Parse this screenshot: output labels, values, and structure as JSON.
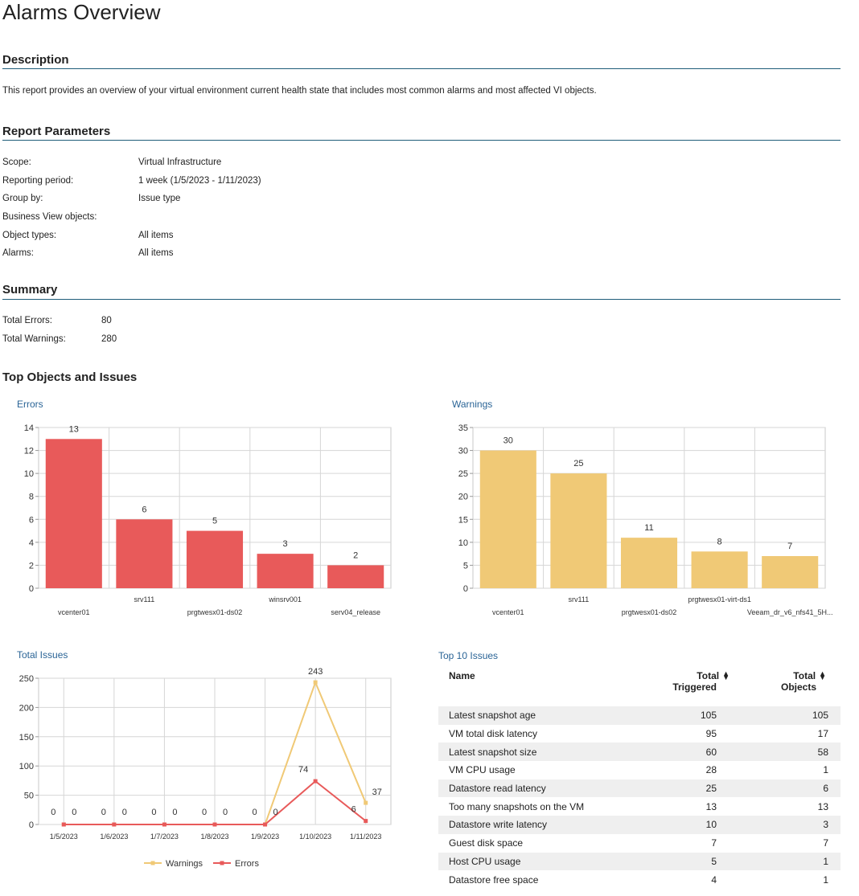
{
  "title": "Alarms Overview",
  "description": {
    "heading": "Description",
    "text": "This report provides an overview of your virtual environment current health state that includes most common alarms and most affected VI objects."
  },
  "parameters": {
    "heading": "Report Parameters",
    "rows": [
      {
        "label": "Scope:",
        "value": "Virtual Infrastructure"
      },
      {
        "label": "Reporting period:",
        "value": "1 week (1/5/2023 - 1/11/2023)"
      },
      {
        "label": "Group by:",
        "value": "Issue type"
      },
      {
        "label": "Business View objects:",
        "value": ""
      },
      {
        "label": "Object types:",
        "value": "All items"
      },
      {
        "label": "Alarms:",
        "value": "All items"
      }
    ]
  },
  "summary": {
    "heading": "Summary",
    "rows": [
      {
        "label": "Total Errors:",
        "value": "80"
      },
      {
        "label": "Total Warnings:",
        "value": "280"
      }
    ]
  },
  "top_heading": "Top Objects and Issues",
  "colors": {
    "errors": "#e85a5a",
    "warnings": "#f0c976",
    "rule": "#1f5d7a",
    "link": "#2a6496"
  },
  "chart_data": [
    {
      "type": "bar",
      "title": "Errors",
      "categories": [
        "vcenter01",
        "srv111",
        "prgtwesx01-ds02",
        "winsrv001",
        "serv04_release"
      ],
      "values": [
        13,
        6,
        5,
        3,
        2
      ],
      "ylim": [
        0,
        14
      ],
      "yticks": [
        0,
        2,
        4,
        6,
        8,
        10,
        12,
        14
      ],
      "grid": true
    },
    {
      "type": "bar",
      "title": "Warnings",
      "categories": [
        "vcenter01",
        "srv111",
        "prgtwesx01-ds02",
        "prgtwesx01-virt-ds1",
        "Veeam_dr_v6_nfs41_5H..."
      ],
      "values": [
        30,
        25,
        11,
        8,
        7
      ],
      "ylim": [
        0,
        35
      ],
      "yticks": [
        0,
        5,
        10,
        15,
        20,
        25,
        30,
        35
      ],
      "grid": true
    },
    {
      "type": "line",
      "title": "Total Issues",
      "x": [
        "1/5/2023",
        "1/6/2023",
        "1/7/2023",
        "1/8/2023",
        "1/9/2023",
        "1/10/2023",
        "1/11/2023"
      ],
      "series": [
        {
          "name": "Warnings",
          "values": [
            0,
            0,
            0,
            0,
            0,
            243,
            37
          ]
        },
        {
          "name": "Errors",
          "values": [
            0,
            0,
            0,
            0,
            0,
            74,
            6
          ]
        }
      ],
      "ylim": [
        0,
        250
      ],
      "yticks": [
        0,
        50,
        100,
        150,
        200,
        250
      ],
      "legend": "bottom",
      "grid": true
    }
  ],
  "top10": {
    "title": "Top 10 Issues",
    "columns": {
      "name": "Name",
      "triggered_1": "Total",
      "triggered_2": "Triggered",
      "objects_1": "Total",
      "objects_2": "Objects"
    },
    "rows": [
      {
        "name": "Latest snapshot age",
        "triggered": "105",
        "objects": "105"
      },
      {
        "name": "VM total disk latency",
        "triggered": "95",
        "objects": "17"
      },
      {
        "name": "Latest snapshot size",
        "triggered": "60",
        "objects": "58"
      },
      {
        "name": "VM CPU usage",
        "triggered": "28",
        "objects": "1"
      },
      {
        "name": "Datastore read latency",
        "triggered": "25",
        "objects": "6"
      },
      {
        "name": "Too many snapshots on the VM",
        "triggered": "13",
        "objects": "13"
      },
      {
        "name": "Datastore write latency",
        "triggered": "10",
        "objects": "3"
      },
      {
        "name": "Guest disk space",
        "triggered": "7",
        "objects": "7"
      },
      {
        "name": "Host CPU usage",
        "triggered": "5",
        "objects": "1"
      },
      {
        "name": "Datastore free space",
        "triggered": "4",
        "objects": "1"
      }
    ]
  }
}
